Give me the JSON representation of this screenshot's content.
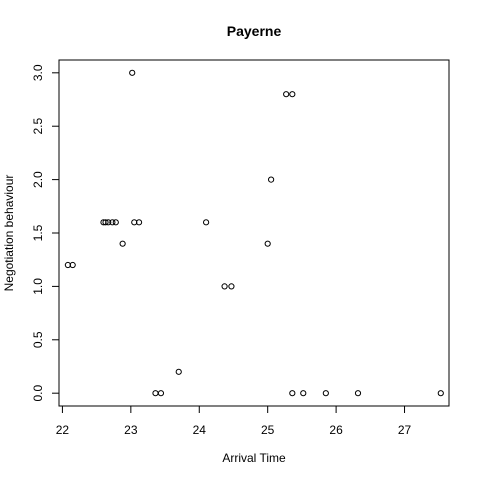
{
  "chart_data": {
    "type": "scatter",
    "title": "Payerne",
    "xlabel": "Arrival Time",
    "ylabel": "Negotiation behaviour",
    "xlim": [
      21.95,
      27.65
    ],
    "ylim": [
      -0.12,
      3.12
    ],
    "x_ticks": [
      22,
      23,
      24,
      25,
      26,
      27
    ],
    "y_ticks": [
      0.0,
      0.5,
      1.0,
      1.5,
      2.0,
      2.5,
      3.0
    ],
    "x_tick_labels": [
      "22",
      "23",
      "24",
      "25",
      "26",
      "27"
    ],
    "y_tick_labels": [
      "0.0",
      "0.5",
      "1.0",
      "1.5",
      "2.0",
      "2.5",
      "3.0"
    ],
    "grid": false,
    "marker": "open-circle",
    "color": "#000000",
    "points": [
      {
        "x": 22.08,
        "y": 1.2
      },
      {
        "x": 22.15,
        "y": 1.2
      },
      {
        "x": 22.6,
        "y": 1.6
      },
      {
        "x": 22.63,
        "y": 1.6
      },
      {
        "x": 22.67,
        "y": 1.6
      },
      {
        "x": 22.73,
        "y": 1.6
      },
      {
        "x": 22.78,
        "y": 1.6
      },
      {
        "x": 22.88,
        "y": 1.4
      },
      {
        "x": 23.02,
        "y": 3.0
      },
      {
        "x": 23.05,
        "y": 1.6
      },
      {
        "x": 23.12,
        "y": 1.6
      },
      {
        "x": 23.36,
        "y": 0.0
      },
      {
        "x": 23.44,
        "y": 0.0
      },
      {
        "x": 23.7,
        "y": 0.2
      },
      {
        "x": 24.1,
        "y": 1.6
      },
      {
        "x": 24.37,
        "y": 1.0
      },
      {
        "x": 24.47,
        "y": 1.0
      },
      {
        "x": 25.0,
        "y": 1.4
      },
      {
        "x": 25.05,
        "y": 2.0
      },
      {
        "x": 25.27,
        "y": 2.8
      },
      {
        "x": 25.36,
        "y": 2.8
      },
      {
        "x": 25.36,
        "y": 0.0
      },
      {
        "x": 25.52,
        "y": 0.0
      },
      {
        "x": 25.85,
        "y": 0.0
      },
      {
        "x": 26.32,
        "y": 0.0
      },
      {
        "x": 27.53,
        "y": 0.0
      }
    ]
  }
}
